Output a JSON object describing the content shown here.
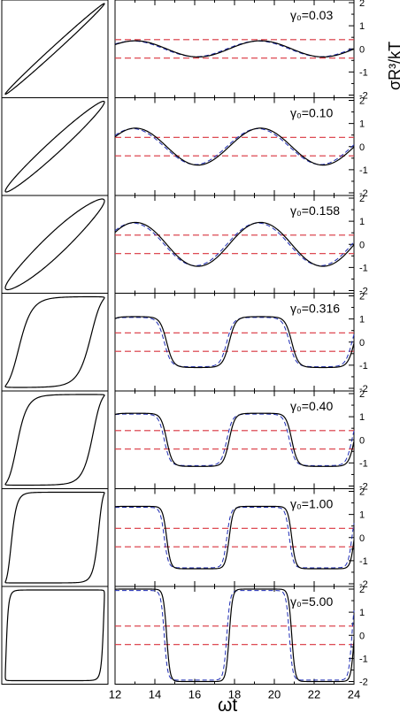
{
  "chart_data": {
    "type": "line",
    "xlabel": "ωt",
    "ylabel": "σR³/kT",
    "xlim": [
      12,
      24
    ],
    "ylim": [
      -2,
      2
    ],
    "xticks": [
      "12",
      "14",
      "16",
      "18",
      "20",
      "22",
      "24"
    ],
    "yticks": [
      "2",
      "1",
      "0",
      "-1",
      "-2"
    ],
    "reference_lines": [
      0.4,
      -0.4
    ],
    "period": 6.283,
    "colors": {
      "solid": "#000000",
      "dashed": "#1f2db4",
      "ref": "#d9343f"
    },
    "panels": [
      {
        "label": "γ₀=0.03",
        "amplitude": 0.35,
        "squareness": 0.0,
        "loop_width": 0.06
      },
      {
        "label": "γ₀=0.10",
        "amplitude": 0.8,
        "squareness": 0.15,
        "loop_width": 0.14
      },
      {
        "label": "γ₀=0.158",
        "amplitude": 0.95,
        "squareness": 0.4,
        "loop_width": 0.22
      },
      {
        "label": "γ₀=0.316",
        "amplitude": 1.1,
        "squareness": 3.0,
        "loop_width": 0.55
      },
      {
        "label": "γ₀=0.40",
        "amplitude": 1.15,
        "squareness": 3.5,
        "loop_width": 0.6
      },
      {
        "label": "γ₀=1.00",
        "amplitude": 1.35,
        "squareness": 5.0,
        "loop_width": 0.75
      },
      {
        "label": "γ₀=5.00",
        "amplitude": 2.0,
        "squareness": 6.0,
        "loop_width": 0.95
      }
    ]
  }
}
